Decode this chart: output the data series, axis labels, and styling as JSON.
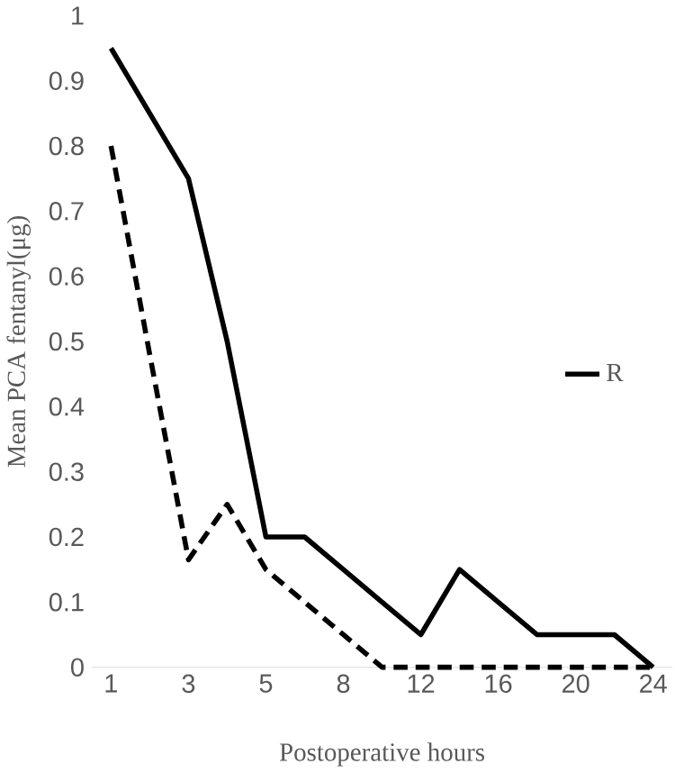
{
  "chart_data": {
    "type": "line",
    "xlabel": "Postoperative hours",
    "ylabel": "Mean PCA fentanyl(μg)",
    "categories": [
      "1",
      null,
      "3",
      null,
      "5",
      null,
      "8",
      null,
      "12",
      null,
      "16",
      null,
      "20",
      null,
      "24"
    ],
    "ylim": [
      0,
      1
    ],
    "yticks": [
      0,
      0.1,
      0.2,
      0.3,
      0.4,
      0.5,
      0.6,
      0.7,
      0.8,
      0.9,
      1
    ],
    "legend": "right",
    "grid": false,
    "series": [
      {
        "name": "R",
        "color": "#000000",
        "line_style": "solid",
        "values": [
          0.95,
          0.85,
          0.75,
          0.5,
          0.2,
          0.2,
          0.15,
          0.1,
          0.05,
          0.15,
          0.1,
          0.05,
          0.05,
          0.05,
          0
        ]
      },
      {
        "color": "#000000",
        "line_style": "dashed",
        "values": [
          0.8,
          0.48,
          0.165,
          0.25,
          0.15,
          0.1,
          0.05,
          0,
          0,
          0,
          0,
          0,
          0,
          0,
          0
        ]
      }
    ]
  }
}
